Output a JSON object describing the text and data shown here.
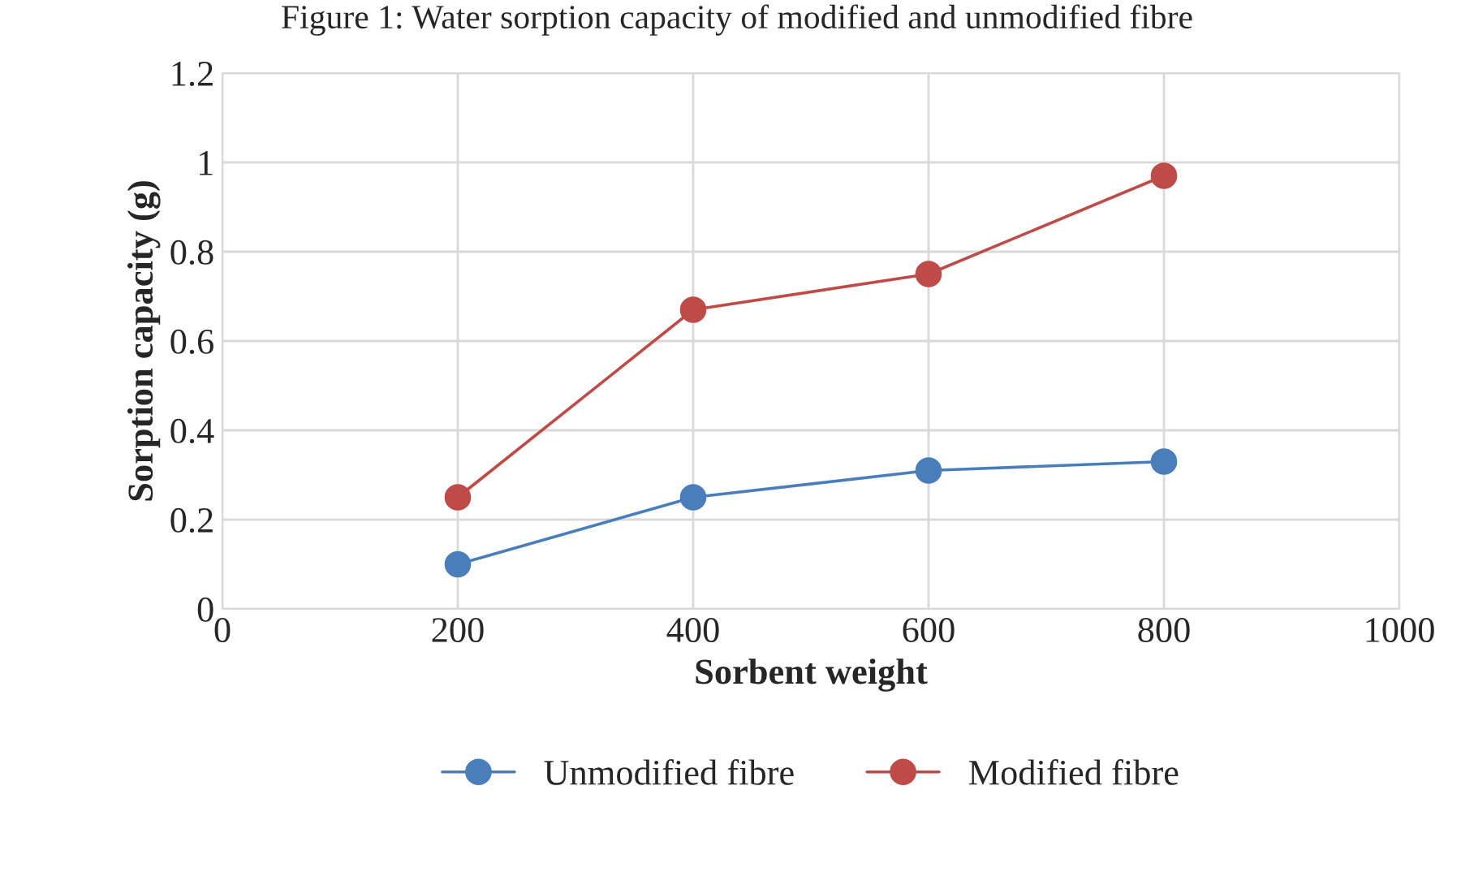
{
  "chart_data": {
    "type": "line",
    "title": "Figure 1: Water sorption capacity of modified and unmodified fibre",
    "xlabel": "Sorbent weight",
    "ylabel": "Sorption capacity (g)",
    "x": [
      200,
      400,
      600,
      800
    ],
    "series": [
      {
        "name": "Unmodified fibre",
        "color": "#4a7ebb",
        "values": [
          0.1,
          0.25,
          0.31,
          0.33
        ]
      },
      {
        "name": "Modified fibre",
        "color": "#be4b48",
        "values": [
          0.25,
          0.67,
          0.75,
          0.97
        ]
      }
    ],
    "xlim": [
      0,
      1000
    ],
    "xticks": [
      0,
      200,
      400,
      600,
      800,
      1000
    ],
    "ylim": [
      0,
      1.2
    ],
    "yticks": [
      0,
      0.2,
      0.4,
      0.6,
      0.8,
      1,
      1.2
    ],
    "grid": true,
    "legend": "bottom",
    "marker": "circle",
    "line_style": "solid"
  }
}
